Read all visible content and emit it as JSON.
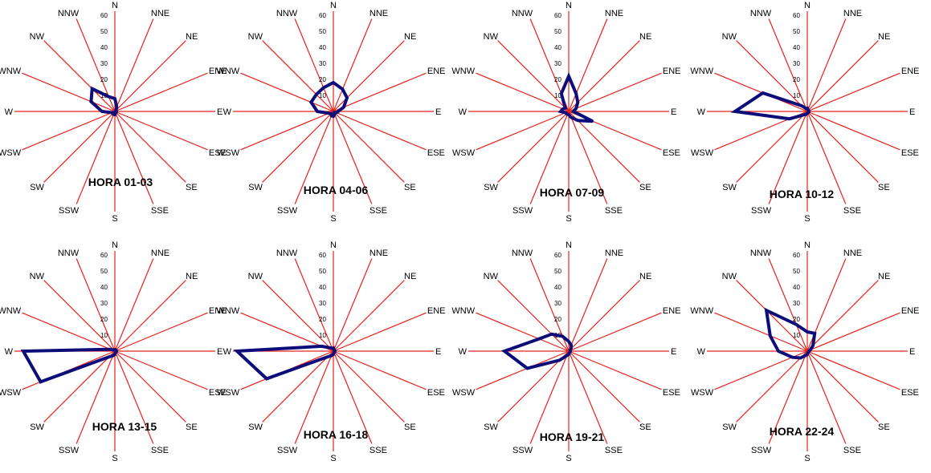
{
  "chart_data": [
    {
      "type": "radar",
      "title": "HORA 01-03",
      "directions": [
        "N",
        "NNE",
        "NE",
        "ENE",
        "E",
        "ESE",
        "SE",
        "SSE",
        "S",
        "SSW",
        "SW",
        "WSW",
        "W",
        "WNW",
        "NW",
        "NNW"
      ],
      "rlim": [
        0,
        60
      ],
      "ticks": [
        10,
        20,
        30,
        40,
        50,
        60
      ],
      "values": [
        8,
        3,
        1,
        1,
        1,
        1,
        1,
        1,
        2,
        2,
        1,
        2,
        8,
        16,
        20,
        10
      ]
    },
    {
      "type": "radar",
      "title": "HORA 04-06",
      "directions": [
        "N",
        "NNE",
        "NE",
        "ENE",
        "E",
        "ESE",
        "SE",
        "SSE",
        "S",
        "SSW",
        "SW",
        "WSW",
        "W",
        "WNW",
        "NW",
        "NNW"
      ],
      "rlim": [
        0,
        60
      ],
      "ticks": [
        10,
        20,
        30,
        40,
        50,
        60
      ],
      "values": [
        18,
        15,
        12,
        7,
        3,
        2,
        1,
        2,
        3,
        3,
        2,
        3,
        10,
        15,
        15,
        16
      ]
    },
    {
      "type": "radar",
      "title": "HORA 07-09",
      "directions": [
        "N",
        "NNE",
        "NE",
        "ENE",
        "E",
        "ESE",
        "SE",
        "SSE",
        "S",
        "SSW",
        "SW",
        "WSW",
        "W",
        "WNW",
        "NW",
        "NNW"
      ],
      "rlim": [
        0,
        60
      ],
      "ticks": [
        10,
        20,
        30,
        40,
        50,
        60
      ],
      "values": [
        22,
        12,
        8,
        5,
        3,
        16,
        8,
        4,
        2,
        2,
        2,
        2,
        5,
        4,
        3,
        12
      ]
    },
    {
      "type": "radar",
      "title": "HORA 10-12",
      "directions": [
        "N",
        "NNE",
        "NE",
        "ENE",
        "E",
        "ESE",
        "SE",
        "SSE",
        "S",
        "SSW",
        "SW",
        "WSW",
        "W",
        "WNW",
        "NW",
        "NNW"
      ],
      "rlim": [
        0,
        60
      ],
      "ticks": [
        10,
        20,
        30,
        40,
        50,
        60
      ],
      "values": [
        2,
        1,
        1,
        1,
        1,
        1,
        1,
        1,
        1,
        2,
        3,
        12,
        45,
        30,
        5,
        2
      ]
    },
    {
      "type": "radar",
      "title": "HORA 13-15",
      "directions": [
        "N",
        "NNE",
        "NE",
        "ENE",
        "E",
        "ESE",
        "SE",
        "SSE",
        "S",
        "SSW",
        "SW",
        "WSW",
        "W",
        "WNW",
        "NW",
        "NNW"
      ],
      "rlim": [
        0,
        60
      ],
      "ticks": [
        10,
        20,
        30,
        40,
        50,
        60
      ],
      "values": [
        1,
        1,
        1,
        1,
        1,
        1,
        1,
        1,
        2,
        3,
        5,
        50,
        57,
        3,
        1,
        1
      ]
    },
    {
      "type": "radar",
      "title": "HORA 16-18",
      "directions": [
        "N",
        "NNE",
        "NE",
        "ENE",
        "E",
        "ESE",
        "SE",
        "SSE",
        "S",
        "SSW",
        "SW",
        "WSW",
        "W",
        "WNW",
        "NW",
        "NNW"
      ],
      "rlim": [
        0,
        60
      ],
      "ticks": [
        10,
        20,
        30,
        40,
        50,
        60
      ],
      "values": [
        2,
        1,
        1,
        1,
        1,
        1,
        1,
        1,
        2,
        3,
        5,
        45,
        60,
        8,
        3,
        2
      ]
    },
    {
      "type": "radar",
      "title": "HORA 19-21",
      "directions": [
        "N",
        "NNE",
        "NE",
        "ENE",
        "E",
        "ESE",
        "SE",
        "SSE",
        "S",
        "SSW",
        "SW",
        "WSW",
        "W",
        "WNW",
        "NW",
        "NNW"
      ],
      "rlim": [
        0,
        60
      ],
      "ticks": [
        10,
        20,
        30,
        40,
        50,
        60
      ],
      "values": [
        6,
        4,
        2,
        1,
        1,
        1,
        1,
        1,
        2,
        3,
        8,
        28,
        40,
        20,
        15,
        10
      ]
    },
    {
      "type": "radar",
      "title": "HORA 22-24",
      "directions": [
        "N",
        "NNE",
        "NE",
        "ENE",
        "E",
        "ESE",
        "SE",
        "SSE",
        "S",
        "SSW",
        "SW",
        "WSW",
        "W",
        "WNW",
        "NW",
        "NNW"
      ],
      "rlim": [
        0,
        60
      ],
      "ticks": [
        10,
        20,
        30,
        40,
        50,
        60
      ],
      "values": [
        12,
        12,
        5,
        2,
        1,
        1,
        1,
        1,
        2,
        3,
        6,
        10,
        18,
        25,
        36,
        18
      ]
    }
  ],
  "colors": {
    "axes": "#e8201c",
    "series": "#0d0d7a"
  }
}
